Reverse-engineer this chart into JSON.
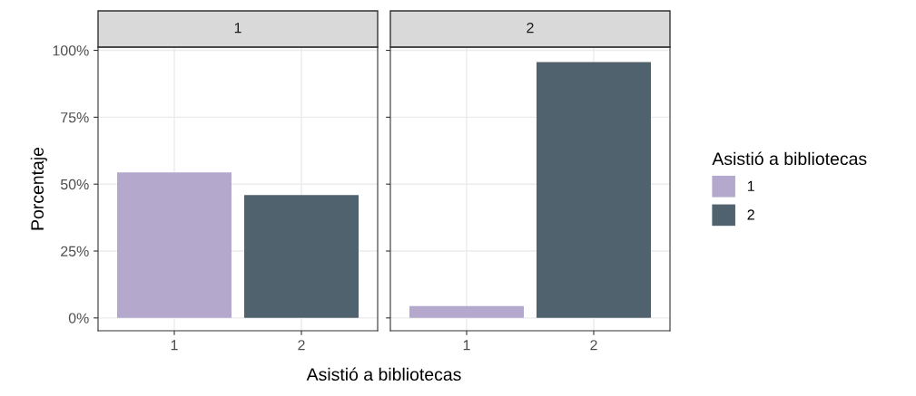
{
  "chart_data": [
    {
      "type": "bar",
      "title": "1",
      "categories": [
        "1",
        "2"
      ],
      "ylabel": "Porcentaje",
      "xlabel": "Asistió a bibliotecas",
      "legend_title": "Asistió a bibliotecas",
      "legend": "right",
      "series": [
        {
          "name": "1",
          "color": "#b4a9cc",
          "values": [
            54.4,
            null
          ]
        },
        {
          "name": "2",
          "color": "#4f626d",
          "values": [
            null,
            45.9
          ]
        }
      ],
      "ylim": [
        -4.8,
        101.2
      ],
      "yticks": [
        {
          "value": 0,
          "label": "0%"
        },
        {
          "value": 25,
          "label": "25%"
        },
        {
          "value": 50,
          "label": "50%"
        },
        {
          "value": 75,
          "label": "75%"
        },
        {
          "value": 100,
          "label": "100%"
        }
      ],
      "grid": true
    },
    {
      "type": "bar",
      "title": "2",
      "categories": [
        "1",
        "2"
      ],
      "tick_labels": "x",
      "series": [
        {
          "color": "#b4a9cc",
          "values": [
            4.4,
            null
          ]
        },
        {
          "color": "#4f626d",
          "values": [
            null,
            95.6
          ]
        }
      ],
      "ylim": [
        -4.8,
        101.2
      ],
      "yticks": [
        {
          "value": 0,
          "label": null
        },
        {
          "value": 25,
          "label": null
        },
        {
          "value": 50,
          "label": null
        },
        {
          "value": 75,
          "label": null
        },
        {
          "value": 100,
          "label": null
        }
      ],
      "grid": true
    }
  ]
}
